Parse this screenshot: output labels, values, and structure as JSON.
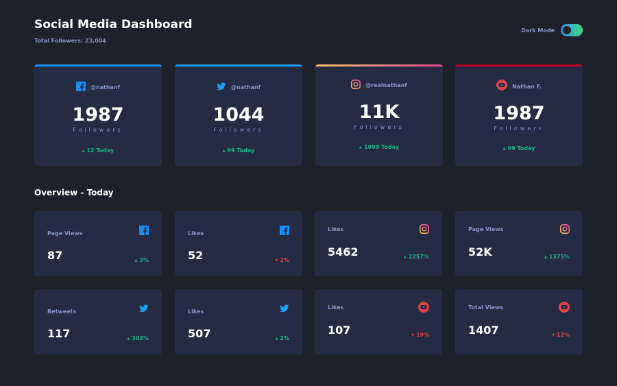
{
  "header": {
    "title": "Social Media Dashboard",
    "total_followers": "Total Followers: 23,004",
    "dark_mode_label": "Dark Mode",
    "dark_mode_on": true
  },
  "colors": {
    "facebook": "#198ff5",
    "twitter": "#1ca0f2",
    "instagram_start": "#fdc468",
    "instagram_end": "#df4996",
    "youtube": "#c4032a",
    "up": "#1db489",
    "down": "#dc414c"
  },
  "follower_cards": [
    {
      "platform": "facebook",
      "icon": "facebook-icon",
      "handle": "@nathanf",
      "count": "1987",
      "label": "Followers",
      "today": "12 Today",
      "trend": "up"
    },
    {
      "platform": "twitter",
      "icon": "twitter-icon",
      "handle": "@nathanf",
      "count": "1044",
      "label": "Followers",
      "today": "99 Today",
      "trend": "up"
    },
    {
      "platform": "instagram",
      "icon": "instagram-icon",
      "handle": "@realnathanf",
      "count": "11K",
      "label": "Followers",
      "today": "1099 Today",
      "trend": "up"
    },
    {
      "platform": "youtube",
      "icon": "youtube-icon",
      "handle": "Nathan F.",
      "count": "1987",
      "label": "Followers",
      "today": "99 Today",
      "trend": "up"
    }
  ],
  "overview": {
    "title": "Overview - Today",
    "cards": [
      {
        "platform": "facebook",
        "icon": "facebook-icon",
        "metric": "Page Views",
        "value": "87",
        "change": "3%",
        "trend": "up"
      },
      {
        "platform": "facebook",
        "icon": "facebook-icon",
        "metric": "Likes",
        "value": "52",
        "change": "2%",
        "trend": "down"
      },
      {
        "platform": "instagram",
        "icon": "instagram-icon",
        "metric": "Likes",
        "value": "5462",
        "change": "2257%",
        "trend": "up"
      },
      {
        "platform": "instagram",
        "icon": "instagram-icon",
        "metric": "Page Views",
        "value": "52K",
        "change": "1375%",
        "trend": "up"
      },
      {
        "platform": "twitter",
        "icon": "twitter-icon",
        "metric": "Retweets",
        "value": "117",
        "change": "303%",
        "trend": "up"
      },
      {
        "platform": "twitter",
        "icon": "twitter-icon",
        "metric": "Likes",
        "value": "507",
        "change": "2%",
        "trend": "up"
      },
      {
        "platform": "youtube",
        "icon": "youtube-icon",
        "metric": "Likes",
        "value": "107",
        "change": "19%",
        "trend": "down"
      },
      {
        "platform": "youtube",
        "icon": "youtube-icon",
        "metric": "Total Views",
        "value": "1407",
        "change": "12%",
        "trend": "down"
      }
    ]
  }
}
